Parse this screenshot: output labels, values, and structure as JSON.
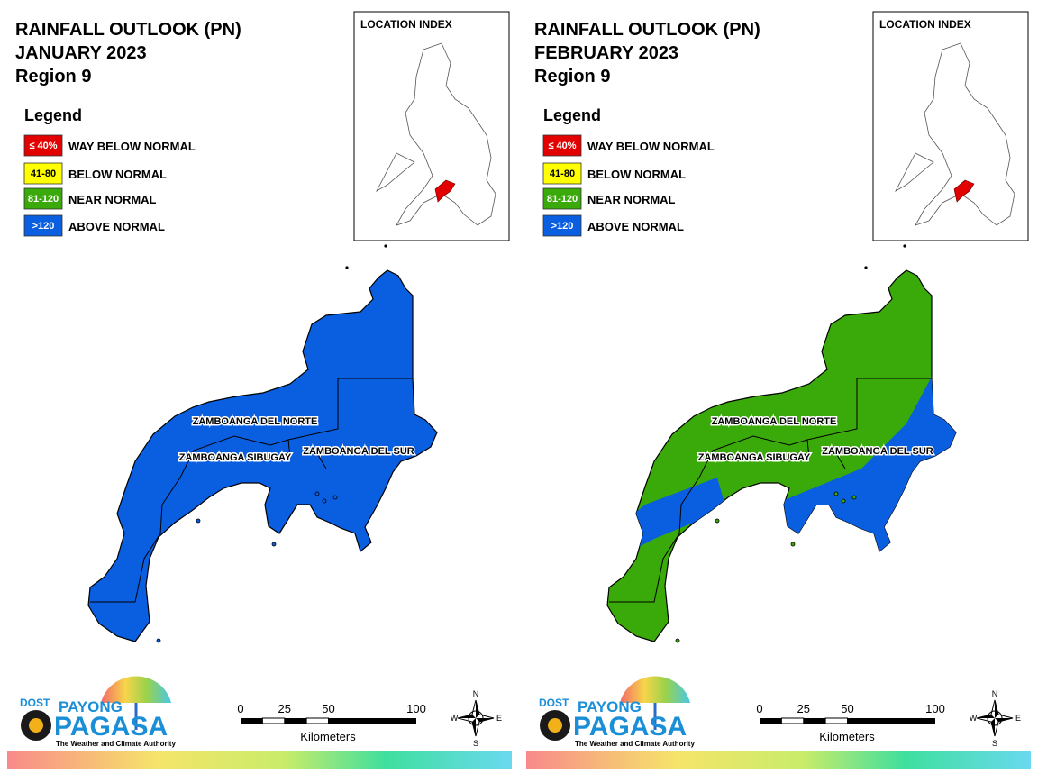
{
  "panels": [
    {
      "title": [
        "RAINFALL OUTLOOK (PN)",
        "JANUARY 2023",
        "Region 9"
      ],
      "legend": {
        "title": "Legend",
        "items": [
          {
            "swatch": "≤ 40%",
            "label": "WAY BELOW NORMAL",
            "color": "#e30000"
          },
          {
            "swatch": "41-80",
            "label": "BELOW NORMAL",
            "color": "#ffff00"
          },
          {
            "swatch": "81-120",
            "label": "NEAR NORMAL",
            "color": "#3aaa0a"
          },
          {
            "swatch": ">120",
            "label": "ABOVE NORMAL",
            "color": "#0a5ee0"
          }
        ]
      },
      "location_index": "LOCATION INDEX",
      "provinces": [
        "ZAMBOANGA DEL NORTE",
        "ZAMBOANGA SIBUGAY",
        "ZAMBOANGA DEL SUR"
      ],
      "scale": {
        "ticks": [
          0,
          25,
          50,
          100
        ],
        "unit": "Kilometers"
      },
      "compass": {
        "n": "N",
        "e": "E",
        "s": "S",
        "w": "W"
      },
      "logo": {
        "dost": "DOST",
        "payong": "PAYONG",
        "pagasa": "PAGASA",
        "tagline": "The Weather and Climate Authority"
      }
    },
    {
      "title": [
        "RAINFALL OUTLOOK (PN)",
        "FEBRUARY 2023",
        "Region 9"
      ],
      "legend": {
        "title": "Legend",
        "items": [
          {
            "swatch": "≤ 40%",
            "label": "WAY BELOW NORMAL",
            "color": "#e30000"
          },
          {
            "swatch": "41-80",
            "label": "BELOW NORMAL",
            "color": "#ffff00"
          },
          {
            "swatch": "81-120",
            "label": "NEAR NORMAL",
            "color": "#3aaa0a"
          },
          {
            "swatch": ">120",
            "label": "ABOVE NORMAL",
            "color": "#0a5ee0"
          }
        ]
      },
      "location_index": "LOCATION INDEX",
      "provinces": [
        "ZAMBOANGA DEL NORTE",
        "ZAMBOANGA SIBUGAY",
        "ZAMBOANGA DEL SUR"
      ],
      "scale": {
        "ticks": [
          0,
          25,
          50,
          100
        ],
        "unit": "Kilometers"
      },
      "compass": {
        "n": "N",
        "e": "E",
        "s": "S",
        "w": "W"
      },
      "logo": {
        "dost": "DOST",
        "payong": "PAYONG",
        "pagasa": "PAGASA",
        "tagline": "The Weather and Climate Authority"
      }
    }
  ]
}
